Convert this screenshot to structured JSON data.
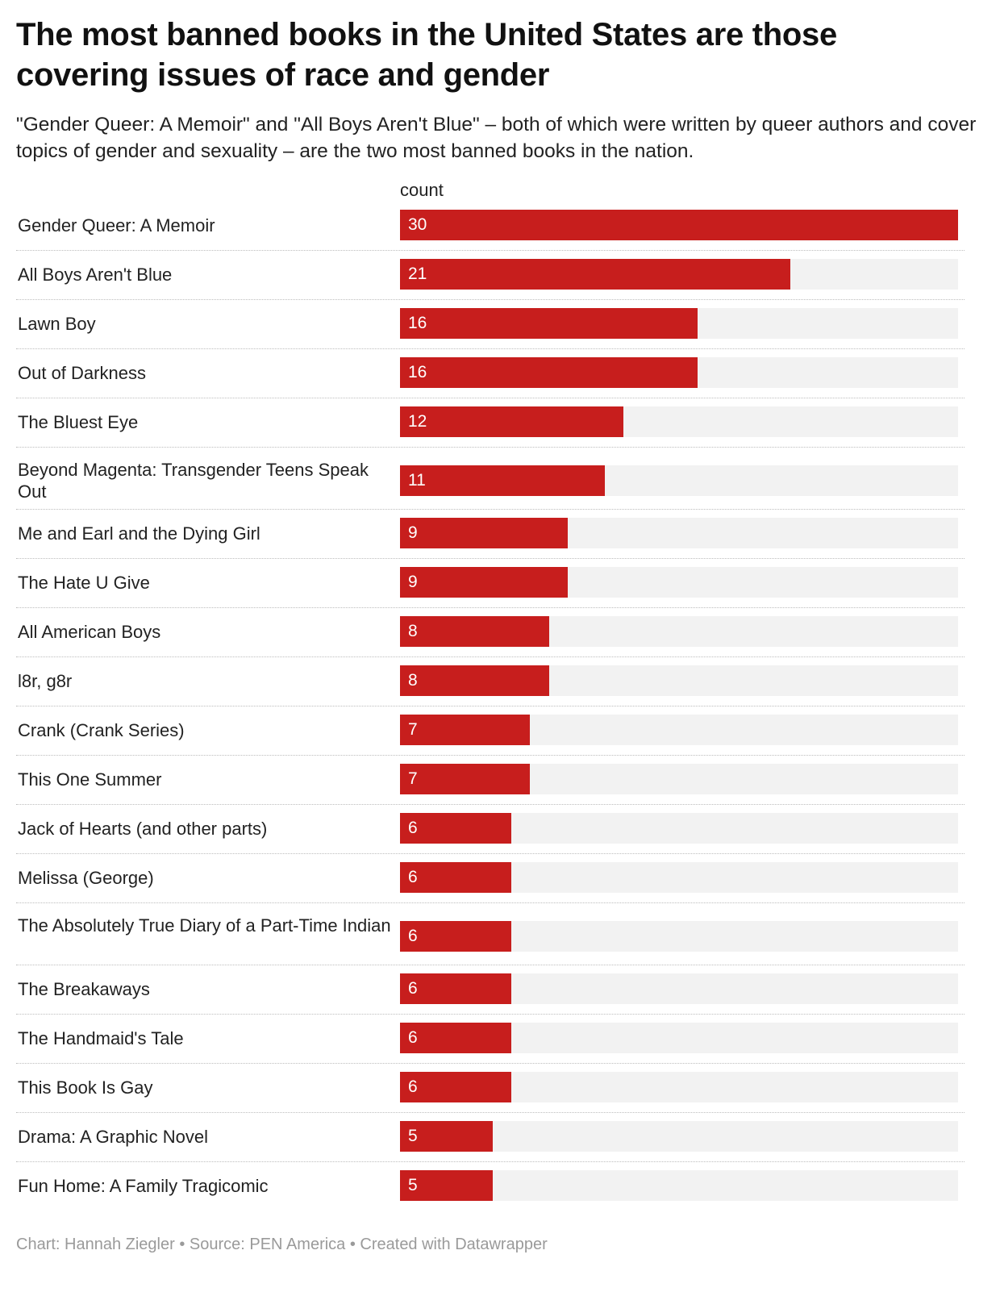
{
  "title": "The most banned books in the United States are those covering issues of race and gender",
  "subtitle": "\"Gender Queer: A Memoir\" and \"All Boys Aren't Blue\" – both of which were written by queer authors and cover topics of gender and sexuality – are the two most banned books in the nation.",
  "footer": "Chart: Hannah Ziegler • Source: PEN America • Created with Datawrapper",
  "colors": {
    "bar": "#c71e1d",
    "track": "#f2f2f2",
    "value_text": "#ffffff"
  },
  "chart_data": {
    "type": "bar",
    "orientation": "horizontal",
    "column_header": "count",
    "xlim": [
      0,
      30
    ],
    "grid": false,
    "categories": [
      "Gender Queer: A Memoir",
      "All Boys Aren't Blue",
      "Lawn Boy",
      "Out of Darkness",
      "The Bluest Eye",
      "Beyond Magenta: Transgender Teens Speak Out",
      "Me and Earl and the Dying Girl",
      "The Hate U Give",
      "All American Boys",
      "l8r, g8r",
      "Crank (Crank Series)",
      "This One Summer",
      "Jack of Hearts (and other parts)",
      "Melissa (George)",
      "The Absolutely True Diary of a Part-Time Indian",
      "The Breakaways",
      "The Handmaid's Tale",
      "This Book Is Gay",
      "Drama: A Graphic Novel",
      "Fun Home: A Family Tragicomic"
    ],
    "values": [
      30,
      21,
      16,
      16,
      12,
      11,
      9,
      9,
      8,
      8,
      7,
      7,
      6,
      6,
      6,
      6,
      6,
      6,
      5,
      5
    ]
  }
}
